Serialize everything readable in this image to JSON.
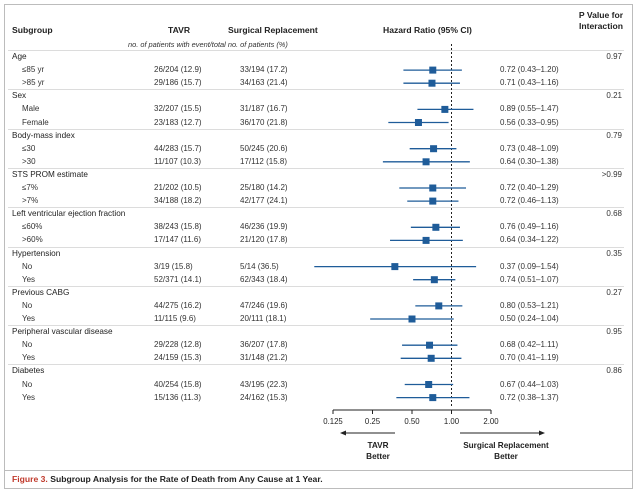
{
  "header": {
    "subgroup": "Subgroup",
    "tavr": "TAVR",
    "surgical": "Surgical Replacement",
    "hazard": "Hazard Ratio (95% CI)",
    "pvalue": "P Value for Interaction",
    "subheader": "no. of patients with event/total no. of patients (%)"
  },
  "rows": [
    {
      "type": "cat",
      "label": "Age",
      "p": "0.97"
    },
    {
      "type": "row",
      "label": "≤85 yr",
      "tavr": "26/204 (12.9)",
      "surg": "33/194 (17.2)",
      "hr": "0.72 (0.43–1.20)"
    },
    {
      "type": "row",
      "label": ">85 yr",
      "tavr": "29/186 (15.7)",
      "surg": "34/163 (21.4)",
      "hr": "0.71 (0.43–1.16)"
    },
    {
      "type": "cat",
      "label": "Sex",
      "p": "0.21"
    },
    {
      "type": "row",
      "label": "Male",
      "tavr": "32/207 (15.5)",
      "surg": "31/187 (16.7)",
      "hr": "0.89 (0.55–1.47)"
    },
    {
      "type": "row",
      "label": "Female",
      "tavr": "23/183 (12.7)",
      "surg": "36/170 (21.8)",
      "hr": "0.56 (0.33–0.95)"
    },
    {
      "type": "cat",
      "label": "Body-mass index",
      "p": "0.79"
    },
    {
      "type": "row",
      "label": "≤30",
      "tavr": "44/283 (15.7)",
      "surg": "50/245 (20.6)",
      "hr": "0.73 (0.48–1.09)"
    },
    {
      "type": "row",
      "label": ">30",
      "tavr": "11/107 (10.3)",
      "surg": "17/112 (15.8)",
      "hr": "0.64 (0.30–1.38)"
    },
    {
      "type": "cat",
      "label": "STS PROM estimate",
      "p": ">0.99"
    },
    {
      "type": "row",
      "label": "≤7%",
      "tavr": "21/202 (10.5)",
      "surg": "25/180 (14.2)",
      "hr": "0.72 (0.40–1.29)"
    },
    {
      "type": "row",
      "label": ">7%",
      "tavr": "34/188 (18.2)",
      "surg": "42/177 (24.1)",
      "hr": "0.72 (0.46–1.13)"
    },
    {
      "type": "cat",
      "label": "Left ventricular ejection fraction",
      "p": "0.68"
    },
    {
      "type": "row",
      "label": "≤60%",
      "tavr": "38/243 (15.8)",
      "surg": "46/236 (19.9)",
      "hr": "0.76 (0.49–1.16)"
    },
    {
      "type": "row",
      "label": ">60%",
      "tavr": "17/147 (11.6)",
      "surg": "21/120 (17.8)",
      "hr": "0.64 (0.34–1.22)"
    },
    {
      "type": "cat",
      "label": "Hypertension",
      "p": "0.35"
    },
    {
      "type": "row",
      "label": "No",
      "tavr": "3/19 (15.8)",
      "surg": "5/14 (36.5)",
      "hr": "0.37 (0.09–1.54)"
    },
    {
      "type": "row",
      "label": "Yes",
      "tavr": "52/371 (14.1)",
      "surg": "62/343 (18.4)",
      "hr": "0.74 (0.51–1.07)"
    },
    {
      "type": "cat",
      "label": "Previous CABG",
      "p": "0.27"
    },
    {
      "type": "row",
      "label": "No",
      "tavr": "44/275 (16.2)",
      "surg": "47/246 (19.6)",
      "hr": "0.80 (0.53–1.21)"
    },
    {
      "type": "row",
      "label": "Yes",
      "tavr": "11/115 (9.6)",
      "surg": "20/111 (18.1)",
      "hr": "0.50 (0.24–1.04)"
    },
    {
      "type": "cat",
      "label": "Peripheral vascular disease",
      "p": "0.95"
    },
    {
      "type": "row",
      "label": "No",
      "tavr": "29/228 (12.8)",
      "surg": "36/207 (17.8)",
      "hr": "0.68 (0.42–1.11)"
    },
    {
      "type": "row",
      "label": "Yes",
      "tavr": "24/159 (15.3)",
      "surg": "31/148 (21.2)",
      "hr": "0.70 (0.41–1.19)"
    },
    {
      "type": "cat",
      "label": "Diabetes",
      "p": "0.86"
    },
    {
      "type": "row",
      "label": "No",
      "tavr": "40/254 (15.8)",
      "surg": "43/195 (22.3)",
      "hr": "0.67 (0.44–1.03)"
    },
    {
      "type": "row",
      "label": "Yes",
      "tavr": "15/136 (11.3)",
      "surg": "24/162 (15.3)",
      "hr": "0.72 (0.38–1.37)"
    }
  ],
  "chart_data": {
    "type": "scatter",
    "xscale": "log2",
    "xlim": [
      0.125,
      2.0
    ],
    "xticks": [
      "0.125",
      "0.25",
      "0.50",
      "1.00",
      "2.00"
    ],
    "reference_line": 1.0,
    "left_label": "TAVR Better",
    "right_label": "Surgical Replacement Better",
    "series": [
      {
        "hr": 0.72,
        "lo": 0.43,
        "hi": 1.2
      },
      {
        "hr": 0.71,
        "lo": 0.43,
        "hi": 1.16
      },
      {
        "hr": 0.89,
        "lo": 0.55,
        "hi": 1.47
      },
      {
        "hr": 0.56,
        "lo": 0.33,
        "hi": 0.95
      },
      {
        "hr": 0.73,
        "lo": 0.48,
        "hi": 1.09
      },
      {
        "hr": 0.64,
        "lo": 0.3,
        "hi": 1.38
      },
      {
        "hr": 0.72,
        "lo": 0.4,
        "hi": 1.29
      },
      {
        "hr": 0.72,
        "lo": 0.46,
        "hi": 1.13
      },
      {
        "hr": 0.76,
        "lo": 0.49,
        "hi": 1.16
      },
      {
        "hr": 0.64,
        "lo": 0.34,
        "hi": 1.22
      },
      {
        "hr": 0.37,
        "lo": 0.09,
        "hi": 1.54
      },
      {
        "hr": 0.74,
        "lo": 0.51,
        "hi": 1.07
      },
      {
        "hr": 0.8,
        "lo": 0.53,
        "hi": 1.21
      },
      {
        "hr": 0.5,
        "lo": 0.24,
        "hi": 1.04
      },
      {
        "hr": 0.68,
        "lo": 0.42,
        "hi": 1.11
      },
      {
        "hr": 0.7,
        "lo": 0.41,
        "hi": 1.19
      },
      {
        "hr": 0.67,
        "lo": 0.44,
        "hi": 1.03
      },
      {
        "hr": 0.72,
        "lo": 0.38,
        "hi": 1.37
      }
    ],
    "marker_color": "#1f5c99"
  },
  "caption": {
    "label": "Figure 3.",
    "text": "Subgroup Analysis for the Rate of Death from Any Cause at 1 Year."
  }
}
